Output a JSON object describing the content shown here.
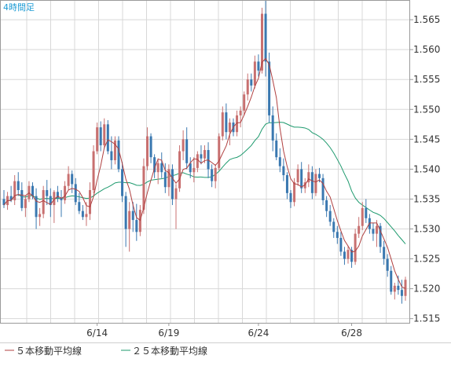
{
  "chart_data": {
    "type": "candlestick",
    "timeframe_label": "4時間足",
    "x_tick_labels": [
      "6/14",
      "6/19",
      "6/24",
      "6/28"
    ],
    "y_tick_labels": [
      "1.515",
      "1.520",
      "1.525",
      "1.530",
      "1.535",
      "1.540",
      "1.545",
      "1.550",
      "1.555",
      "1.560",
      "1.565"
    ],
    "ylim": [
      1.5143,
      1.5683
    ],
    "grid": true,
    "legend_position": "bottom-left",
    "legend": [
      {
        "key": "ma5",
        "label": "５本移動平均線",
        "color": "#b04040"
      },
      {
        "key": "ma25",
        "label": "２５本移動平均線",
        "color": "#1e9a6e"
      }
    ],
    "colors": {
      "up": "#c87070",
      "down": "#3a78b0",
      "grid": "#d8d8d8",
      "frame": "#9a9a9a",
      "label": "#1d9bd4"
    },
    "candles": [
      [
        1.535,
        1.5365,
        1.5335,
        1.534
      ],
      [
        1.534,
        1.5362,
        1.5332,
        1.5355
      ],
      [
        1.5355,
        1.5372,
        1.5345,
        1.5348
      ],
      [
        1.5348,
        1.539,
        1.534,
        1.538
      ],
      [
        1.538,
        1.5395,
        1.5355,
        1.5365
      ],
      [
        1.5365,
        1.5378,
        1.533,
        1.5335
      ],
      [
        1.5335,
        1.5355,
        1.532,
        1.535
      ],
      [
        1.535,
        1.538,
        1.5345,
        1.5372
      ],
      [
        1.5372,
        1.5378,
        1.535,
        1.5355
      ],
      [
        1.5355,
        1.5368,
        1.53,
        1.532
      ],
      [
        1.532,
        1.5335,
        1.5305,
        1.5325
      ],
      [
        1.5325,
        1.5372,
        1.5318,
        1.5365
      ],
      [
        1.5365,
        1.5382,
        1.534,
        1.5355
      ],
      [
        1.5355,
        1.5368,
        1.532,
        1.534
      ],
      [
        1.534,
        1.5365,
        1.531,
        1.5362
      ],
      [
        1.5362,
        1.5372,
        1.5345,
        1.5352
      ],
      [
        1.5352,
        1.5365,
        1.532,
        1.5348
      ],
      [
        1.5348,
        1.538,
        1.5342,
        1.5372
      ],
      [
        1.5372,
        1.5405,
        1.5365,
        1.5392
      ],
      [
        1.5392,
        1.5398,
        1.536,
        1.5375
      ],
      [
        1.5375,
        1.5385,
        1.534,
        1.5345
      ],
      [
        1.5345,
        1.536,
        1.5325,
        1.533
      ],
      [
        1.533,
        1.534,
        1.5315,
        1.532
      ],
      [
        1.532,
        1.5345,
        1.5305,
        1.5325
      ],
      [
        1.5325,
        1.5378,
        1.5315,
        1.5365
      ],
      [
        1.5365,
        1.544,
        1.536,
        1.543
      ],
      [
        1.543,
        1.5478,
        1.5425,
        1.547
      ],
      [
        1.547,
        1.548,
        1.543,
        1.544
      ],
      [
        1.544,
        1.5485,
        1.5435,
        1.5475
      ],
      [
        1.5475,
        1.5482,
        1.5425,
        1.543
      ],
      [
        1.543,
        1.5455,
        1.54,
        1.5415
      ],
      [
        1.5415,
        1.5455,
        1.5408,
        1.5448
      ],
      [
        1.5448,
        1.5455,
        1.5395,
        1.54
      ],
      [
        1.54,
        1.5412,
        1.5345,
        1.5355
      ],
      [
        1.5355,
        1.5362,
        1.527,
        1.53
      ],
      [
        1.53,
        1.5345,
        1.5262,
        1.533
      ],
      [
        1.533,
        1.5345,
        1.5295,
        1.5315
      ],
      [
        1.5315,
        1.5342,
        1.528,
        1.5295
      ],
      [
        1.5295,
        1.534,
        1.5288,
        1.5332
      ],
      [
        1.5332,
        1.5418,
        1.5325,
        1.5405
      ],
      [
        1.5405,
        1.547,
        1.5398,
        1.5455
      ],
      [
        1.5455,
        1.546,
        1.541,
        1.542
      ],
      [
        1.542,
        1.5425,
        1.5385,
        1.5395
      ],
      [
        1.5395,
        1.5418,
        1.5375,
        1.541
      ],
      [
        1.541,
        1.5428,
        1.5385,
        1.5395
      ],
      [
        1.5395,
        1.541,
        1.536,
        1.537
      ],
      [
        1.537,
        1.5408,
        1.5355,
        1.54
      ],
      [
        1.54,
        1.5408,
        1.534,
        1.535
      ],
      [
        1.535,
        1.5375,
        1.53,
        1.5368
      ],
      [
        1.5368,
        1.544,
        1.5362,
        1.543
      ],
      [
        1.543,
        1.5465,
        1.5415,
        1.545
      ],
      [
        1.545,
        1.547,
        1.54,
        1.541
      ],
      [
        1.541,
        1.542,
        1.5385,
        1.5395
      ],
      [
        1.5395,
        1.542,
        1.5378,
        1.5402
      ],
      [
        1.5402,
        1.543,
        1.5395,
        1.5425
      ],
      [
        1.5425,
        1.544,
        1.5408,
        1.5418
      ],
      [
        1.5418,
        1.544,
        1.541,
        1.5432
      ],
      [
        1.5432,
        1.5445,
        1.5385,
        1.54
      ],
      [
        1.54,
        1.5408,
        1.537,
        1.538
      ],
      [
        1.538,
        1.5408,
        1.5368,
        1.5402
      ],
      [
        1.5402,
        1.546,
        1.5398,
        1.5455
      ],
      [
        1.5455,
        1.5505,
        1.5448,
        1.5495
      ],
      [
        1.5495,
        1.551,
        1.545,
        1.5462
      ],
      [
        1.5462,
        1.5485,
        1.544,
        1.5478
      ],
      [
        1.5478,
        1.5485,
        1.5455,
        1.5462
      ],
      [
        1.5462,
        1.5498,
        1.5455,
        1.549
      ],
      [
        1.549,
        1.5505,
        1.547,
        1.5498
      ],
      [
        1.5498,
        1.553,
        1.549,
        1.5525
      ],
      [
        1.5525,
        1.556,
        1.5515,
        1.555
      ],
      [
        1.555,
        1.556,
        1.553,
        1.554
      ],
      [
        1.554,
        1.559,
        1.5535,
        1.558
      ],
      [
        1.558,
        1.5592,
        1.5555,
        1.5565
      ],
      [
        1.5565,
        1.567,
        1.556,
        1.566
      ],
      [
        1.566,
        1.5683,
        1.5555,
        1.558
      ],
      [
        1.558,
        1.5595,
        1.5478,
        1.549
      ],
      [
        1.549,
        1.5505,
        1.543,
        1.5448
      ],
      [
        1.5448,
        1.546,
        1.5415,
        1.542
      ],
      [
        1.542,
        1.5435,
        1.5395,
        1.5405
      ],
      [
        1.5405,
        1.5418,
        1.538,
        1.539
      ],
      [
        1.539,
        1.5395,
        1.535,
        1.536
      ],
      [
        1.536,
        1.5365,
        1.5335,
        1.5345
      ],
      [
        1.5345,
        1.5385,
        1.5338,
        1.5378
      ],
      [
        1.5378,
        1.5408,
        1.5372,
        1.54
      ],
      [
        1.54,
        1.5412,
        1.536,
        1.5368
      ],
      [
        1.5368,
        1.5385,
        1.536,
        1.5378
      ],
      [
        1.5378,
        1.5408,
        1.537,
        1.5395
      ],
      [
        1.5395,
        1.5405,
        1.535,
        1.536
      ],
      [
        1.536,
        1.54,
        1.5355,
        1.5392
      ],
      [
        1.5392,
        1.5402,
        1.5378,
        1.5385
      ],
      [
        1.5385,
        1.5392,
        1.534,
        1.5348
      ],
      [
        1.5348,
        1.5355,
        1.532,
        1.533
      ],
      [
        1.533,
        1.534,
        1.5305,
        1.5312
      ],
      [
        1.5312,
        1.5318,
        1.5285,
        1.5295
      ],
      [
        1.5295,
        1.5305,
        1.5275,
        1.5285
      ],
      [
        1.5285,
        1.5295,
        1.5255,
        1.5262
      ],
      [
        1.5262,
        1.527,
        1.524,
        1.525
      ],
      [
        1.525,
        1.5272,
        1.5242,
        1.5265
      ],
      [
        1.5265,
        1.527,
        1.5235,
        1.5245
      ],
      [
        1.5245,
        1.53,
        1.524,
        1.5292
      ],
      [
        1.5292,
        1.532,
        1.5285,
        1.5305
      ],
      [
        1.5305,
        1.5345,
        1.5298,
        1.5335
      ],
      [
        1.5335,
        1.535,
        1.531,
        1.5318
      ],
      [
        1.5318,
        1.5325,
        1.5292,
        1.53
      ],
      [
        1.53,
        1.531,
        1.528,
        1.5292
      ],
      [
        1.5292,
        1.5315,
        1.527,
        1.5305
      ],
      [
        1.5305,
        1.531,
        1.526,
        1.527
      ],
      [
        1.527,
        1.528,
        1.524,
        1.525
      ],
      [
        1.525,
        1.5258,
        1.522,
        1.523
      ],
      [
        1.523,
        1.5238,
        1.519,
        1.5195
      ],
      [
        1.5195,
        1.521,
        1.5182,
        1.5205
      ],
      [
        1.5205,
        1.5222,
        1.519,
        1.5198
      ],
      [
        1.5198,
        1.5215,
        1.5175,
        1.5188
      ],
      [
        1.5188,
        1.522,
        1.518,
        1.5215
      ]
    ],
    "x_tick_candle_index": [
      26,
      46,
      71,
      97
    ]
  }
}
